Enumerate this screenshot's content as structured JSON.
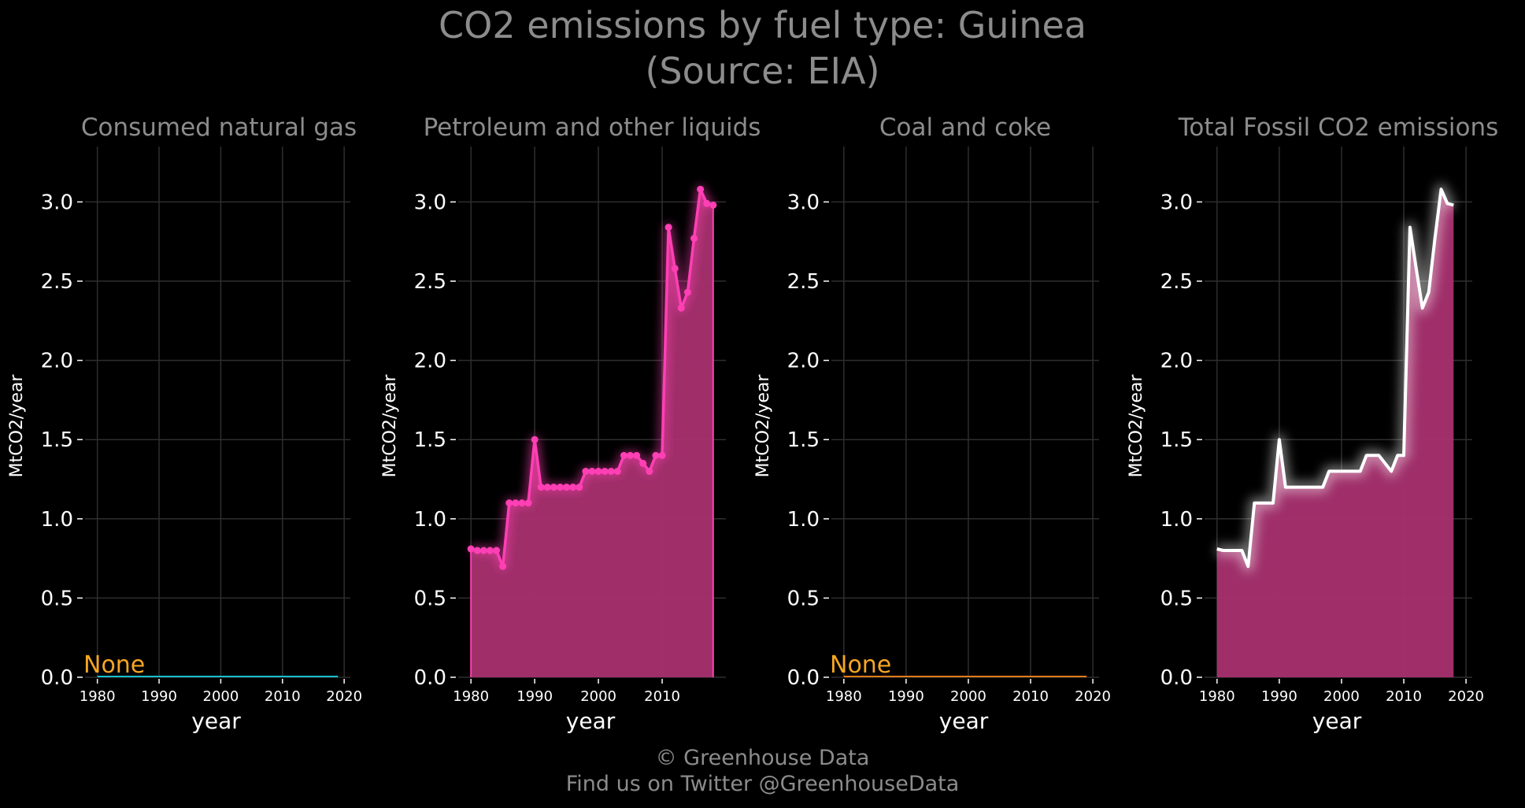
{
  "title_line1": "CO2 emissions by fuel type: Guinea",
  "title_line2": "(Source: EIA)",
  "footer_line1": "© Greenhouse Data",
  "footer_line2": "Find us on Twitter @GreenhouseData",
  "colors": {
    "background": "#000000",
    "grid": "#2e2e2e",
    "title_text": "#8c8c8c",
    "tick_text": "#ffffff",
    "natural_gas": "#17becf",
    "petroleum": "#ff3fb4",
    "petroleum_fill": "#a8306f",
    "coal": "#e07b17",
    "total_line": "#ffffff",
    "none_label": "#f5a623"
  },
  "chart_data": [
    {
      "type": "line",
      "title": "Consumed natural gas",
      "xlabel": "year",
      "ylabel": "MtCO2/year",
      "xlim": [
        1978,
        2021
      ],
      "ylim": [
        0,
        3.35
      ],
      "xticks": [
        1980,
        1990,
        2000,
        2010,
        2020
      ],
      "yticks": [
        "0.0",
        "0.5",
        "1.0",
        "1.5",
        "2.0",
        "2.5",
        "3.0"
      ],
      "grid": true,
      "annotation": "None",
      "series": [
        {
          "x": [
            1980,
            2019
          ],
          "y": [
            0,
            0
          ]
        }
      ]
    },
    {
      "type": "area",
      "title": "Petroleum and other liquids",
      "xlabel": "year",
      "ylabel": "MtCO2/year",
      "xlim": [
        1978,
        2020
      ],
      "ylim": [
        0,
        3.35
      ],
      "xticks": [
        1980,
        1990,
        2000,
        2010
      ],
      "yticks": [
        "0.0",
        "0.5",
        "1.0",
        "1.5",
        "2.0",
        "2.5",
        "3.0"
      ],
      "grid": true,
      "markers": true,
      "series": [
        {
          "x": [
            1980,
            1981,
            1982,
            1983,
            1984,
            1985,
            1986,
            1987,
            1988,
            1989,
            1990,
            1991,
            1992,
            1993,
            1994,
            1995,
            1996,
            1997,
            1998,
            1999,
            2000,
            2001,
            2002,
            2003,
            2004,
            2005,
            2006,
            2007,
            2008,
            2009,
            2010,
            2011,
            2012,
            2013,
            2014,
            2015,
            2016,
            2017,
            2018
          ],
          "y": [
            0.81,
            0.8,
            0.8,
            0.8,
            0.8,
            0.7,
            1.1,
            1.1,
            1.1,
            1.1,
            1.5,
            1.2,
            1.2,
            1.2,
            1.2,
            1.2,
            1.2,
            1.2,
            1.3,
            1.3,
            1.3,
            1.3,
            1.3,
            1.3,
            1.4,
            1.4,
            1.4,
            1.35,
            1.3,
            1.4,
            1.4,
            2.84,
            2.58,
            2.33,
            2.43,
            2.77,
            3.08,
            2.99,
            2.98
          ]
        }
      ]
    },
    {
      "type": "line",
      "title": "Coal and coke",
      "xlabel": "year",
      "ylabel": "MtCO2/year",
      "xlim": [
        1978,
        2021
      ],
      "ylim": [
        0,
        3.35
      ],
      "xticks": [
        1980,
        1990,
        2000,
        2010,
        2020
      ],
      "yticks": [
        "0.0",
        "0.5",
        "1.0",
        "1.5",
        "2.0",
        "2.5",
        "3.0"
      ],
      "grid": true,
      "annotation": "None",
      "series": [
        {
          "x": [
            1980,
            2019
          ],
          "y": [
            0,
            0
          ]
        }
      ]
    },
    {
      "type": "area",
      "title": "Total Fossil CO2 emissions",
      "xlabel": "year",
      "ylabel": "MtCO2/year",
      "xlim": [
        1978,
        2021
      ],
      "ylim": [
        0,
        3.35
      ],
      "xticks": [
        1980,
        1990,
        2000,
        2010,
        2020
      ],
      "yticks": [
        "0.0",
        "0.5",
        "1.0",
        "1.5",
        "2.0",
        "2.5",
        "3.0"
      ],
      "grid": true,
      "markers": false,
      "series": [
        {
          "x": [
            1980,
            1981,
            1982,
            1983,
            1984,
            1985,
            1986,
            1987,
            1988,
            1989,
            1990,
            1991,
            1992,
            1993,
            1994,
            1995,
            1996,
            1997,
            1998,
            1999,
            2000,
            2001,
            2002,
            2003,
            2004,
            2005,
            2006,
            2007,
            2008,
            2009,
            2010,
            2011,
            2012,
            2013,
            2014,
            2015,
            2016,
            2017,
            2018
          ],
          "y": [
            0.81,
            0.8,
            0.8,
            0.8,
            0.8,
            0.7,
            1.1,
            1.1,
            1.1,
            1.1,
            1.5,
            1.2,
            1.2,
            1.2,
            1.2,
            1.2,
            1.2,
            1.2,
            1.3,
            1.3,
            1.3,
            1.3,
            1.3,
            1.3,
            1.4,
            1.4,
            1.4,
            1.35,
            1.3,
            1.4,
            1.4,
            2.84,
            2.58,
            2.33,
            2.43,
            2.77,
            3.08,
            2.99,
            2.98
          ]
        }
      ]
    }
  ]
}
